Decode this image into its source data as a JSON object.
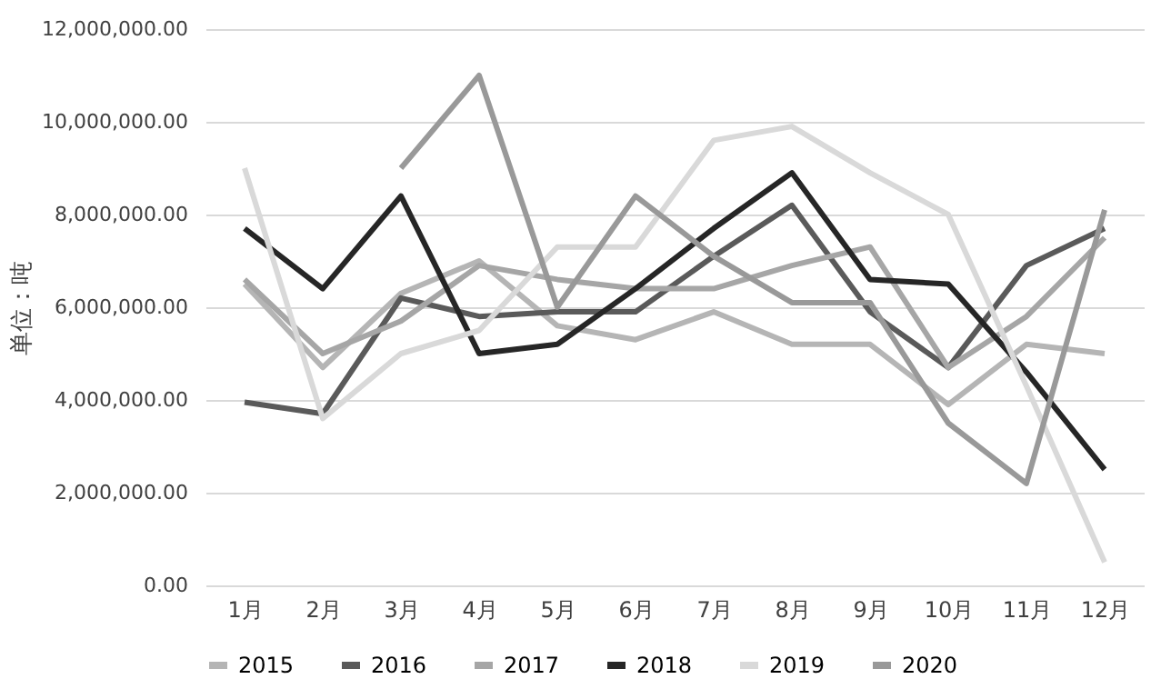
{
  "chart_data": {
    "type": "line",
    "ylabel": "单位：吨",
    "categories": [
      "1月",
      "2月",
      "3月",
      "4月",
      "5月",
      "6月",
      "7月",
      "8月",
      "9月",
      "10月",
      "11月",
      "12月"
    ],
    "ylim": [
      0,
      12000000
    ],
    "yticks": [
      {
        "value": 0,
        "label": "0.00"
      },
      {
        "value": 2000000,
        "label": "2,000,000.00"
      },
      {
        "value": 4000000,
        "label": "4,000,000.00"
      },
      {
        "value": 6000000,
        "label": "6,000,000.00"
      },
      {
        "value": 8000000,
        "label": "8,000,000.00"
      },
      {
        "value": 10000000,
        "label": "10,000,000.00"
      },
      {
        "value": 12000000,
        "label": "12,000,000.00"
      }
    ],
    "grid": "y",
    "legend": "bottom",
    "marker": "none",
    "line_style": "solid",
    "series": [
      {
        "name": "2015",
        "color": "#b5b5b5",
        "values": [
          6500000,
          4700000,
          6300000,
          7000000,
          5600000,
          5300000,
          5900000,
          5200000,
          5200000,
          3900000,
          5200000,
          5000000
        ]
      },
      {
        "name": "2016",
        "color": "#5a5a5a",
        "values": [
          3950000,
          3700000,
          6200000,
          5800000,
          5900000,
          5900000,
          7100000,
          8200000,
          5900000,
          4700000,
          6900000,
          7700000
        ]
      },
      {
        "name": "2017",
        "color": "#a6a6a6",
        "values": [
          6600000,
          5000000,
          5700000,
          6900000,
          6600000,
          6400000,
          6400000,
          6900000,
          7300000,
          4700000,
          5800000,
          7500000
        ]
      },
      {
        "name": "2018",
        "color": "#262626",
        "values": [
          7700000,
          6400000,
          8400000,
          5000000,
          5200000,
          6400000,
          7700000,
          8900000,
          6600000,
          6500000,
          4600000,
          2500000
        ]
      },
      {
        "name": "2019",
        "color": "#d9d9d9",
        "values": [
          9000000,
          3600000,
          5000000,
          5500000,
          7300000,
          7300000,
          9600000,
          9900000,
          8900000,
          8000000,
          4300000,
          500000
        ]
      },
      {
        "name": "2020",
        "color": "#999999",
        "values": [
          null,
          null,
          9000000,
          11000000,
          6000000,
          8400000,
          7100000,
          6100000,
          6100000,
          3500000,
          2200000,
          8100000
        ]
      }
    ]
  }
}
